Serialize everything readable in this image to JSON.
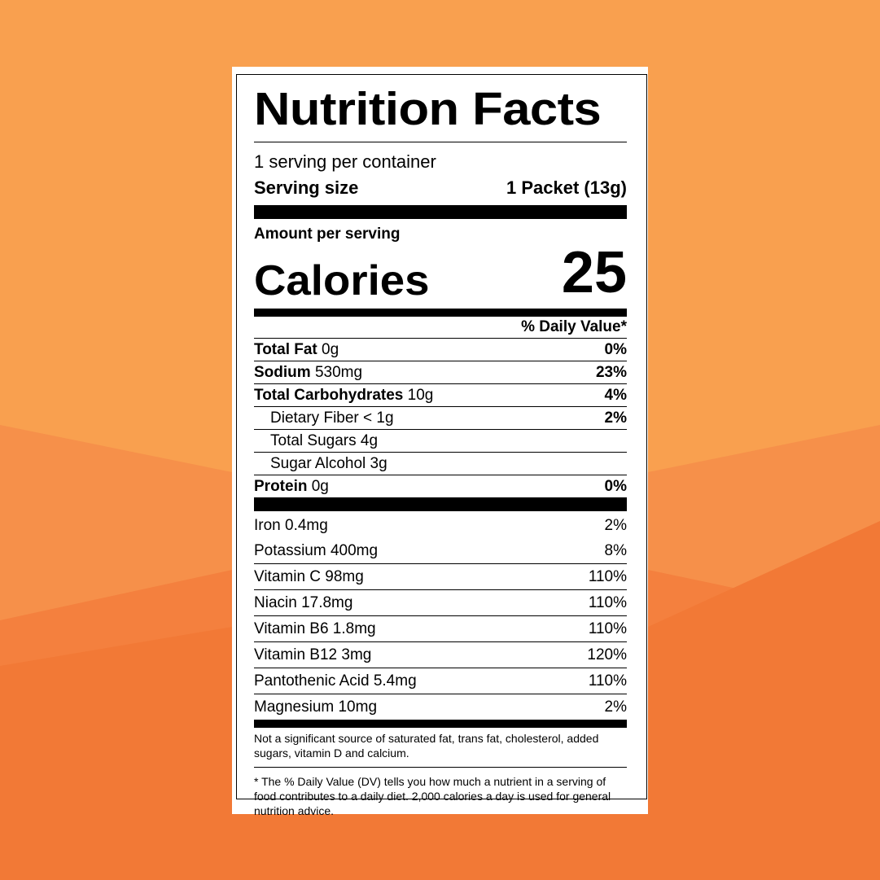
{
  "background": {
    "colors": [
      "#f9a04f",
      "#f6904a",
      "#f4803e",
      "#f27936"
    ]
  },
  "label": {
    "title": "Nutrition Facts",
    "servings_per_container": "1 serving per container",
    "serving_size_label": "Serving size",
    "serving_size_value": "1 Packet (13g)",
    "amount_per_serving": "Amount per serving",
    "calories_label": "Calories",
    "calories_value": "25",
    "daily_value_header": "% Daily Value*",
    "nutrients": [
      {
        "name": "Total Fat",
        "amount": "0g",
        "dv": "0%"
      },
      {
        "name": "Sodium",
        "amount": "530mg",
        "dv": "23%"
      },
      {
        "name": "Total Carbohydrates",
        "amount": "10g",
        "dv": "4%"
      },
      {
        "name": "Dietary Fiber < 1g",
        "amount": "",
        "dv": "2%"
      },
      {
        "name": "Total Sugars 4g",
        "amount": "",
        "dv": ""
      },
      {
        "name": "Sugar Alcohol 3g",
        "amount": "",
        "dv": ""
      },
      {
        "name": "Protein",
        "amount": "0g",
        "dv": "0%"
      }
    ],
    "vitamins": [
      {
        "name": "Iron 0.4mg",
        "dv": "2%"
      },
      {
        "name": "Potassium 400mg",
        "dv": "8%"
      },
      {
        "name": "Vitamin C 98mg",
        "dv": "110%"
      },
      {
        "name": "Niacin 17.8mg",
        "dv": "110%"
      },
      {
        "name": "Vitamin B6 1.8mg",
        "dv": "110%"
      },
      {
        "name": "Vitamin B12 3mg",
        "dv": "120%"
      },
      {
        "name": "Pantothenic Acid 5.4mg",
        "dv": "110%"
      },
      {
        "name": "Magnesium 10mg",
        "dv": "2%"
      }
    ],
    "footnote_not_significant": "Not a significant source of saturated fat, trans fat, cholesterol, added sugars, vitamin D and calcium.",
    "footnote_daily_value": "* The % Daily Value (DV) tells you how much a nutrient in a serving of food contributes to a daily diet. 2,000 calories a day is used for general nutrition advice."
  }
}
